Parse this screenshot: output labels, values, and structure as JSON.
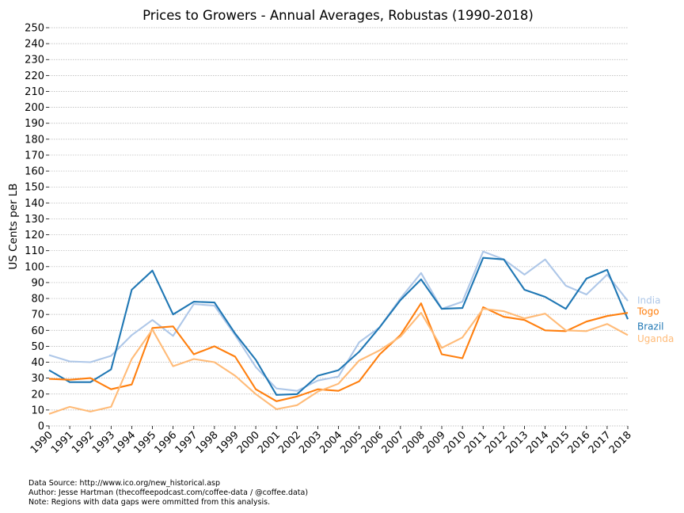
{
  "chart_data": {
    "type": "line",
    "title": "Prices to Growers - Annual Averages, Robustas (1990-2018)",
    "xlabel": "",
    "ylabel": "US Cents per LB",
    "x": [
      1990,
      1991,
      1992,
      1993,
      1994,
      1995,
      1996,
      1997,
      1998,
      1999,
      2000,
      2001,
      2002,
      2003,
      2004,
      2005,
      2006,
      2007,
      2008,
      2009,
      2010,
      2011,
      2012,
      2013,
      2014,
      2015,
      2016,
      2017,
      2018
    ],
    "xlim": [
      1990,
      2018
    ],
    "ylim": [
      0,
      250
    ],
    "ytick_step": 10,
    "grid": "horizontal dotted",
    "legend": "inline labels at right end of lines",
    "series": [
      {
        "name": "India",
        "color": "#aec7e8",
        "values": [
          44.5,
          40.5,
          40,
          44,
          57,
          66.5,
          56.5,
          76.5,
          75.5,
          57,
          37,
          23.5,
          22,
          28.5,
          31,
          52.5,
          62,
          80,
          96,
          73.5,
          78,
          109.5,
          104.5,
          95,
          104.5,
          88,
          82.5,
          95,
          78.5
        ]
      },
      {
        "name": "Brazil",
        "color": "#1f77b4",
        "values": [
          35,
          27.5,
          27.5,
          35.5,
          85.5,
          97.5,
          70,
          78,
          77.5,
          58,
          41.5,
          19.5,
          20,
          31.5,
          35,
          46.5,
          62,
          79,
          92,
          73.5,
          74,
          105.5,
          104.5,
          85.5,
          81,
          73.5,
          92.5,
          98,
          67
        ]
      },
      {
        "name": "Togo",
        "color": "#ff7f0e",
        "values": [
          29.5,
          29,
          30,
          23,
          26,
          61.5,
          62.5,
          45,
          50,
          43.5,
          23,
          15.5,
          18.5,
          23,
          22,
          28,
          45,
          57,
          77,
          45,
          42.5,
          74.5,
          68.5,
          66.5,
          60,
          59.5,
          65.5,
          69,
          71
        ]
      },
      {
        "name": "Uganda",
        "color": "#ffbb78",
        "values": [
          7.5,
          12,
          9,
          12,
          42,
          60.5,
          37.5,
          42,
          40,
          31.5,
          20,
          10.5,
          13,
          21.5,
          26.5,
          41,
          47.5,
          56,
          71,
          49,
          55.5,
          73.5,
          72,
          67.5,
          70.5,
          60,
          59.5,
          64,
          57
        ]
      }
    ]
  },
  "footer": {
    "line1": "Data Source: http://www.ico.org/new_historical.asp",
    "line2": "Author: Jesse Hartman (thecoffeepodcast.com/coffee-data / @coffee.data)",
    "line3": "Note: Regions with data gaps were ommitted from this analysis."
  }
}
